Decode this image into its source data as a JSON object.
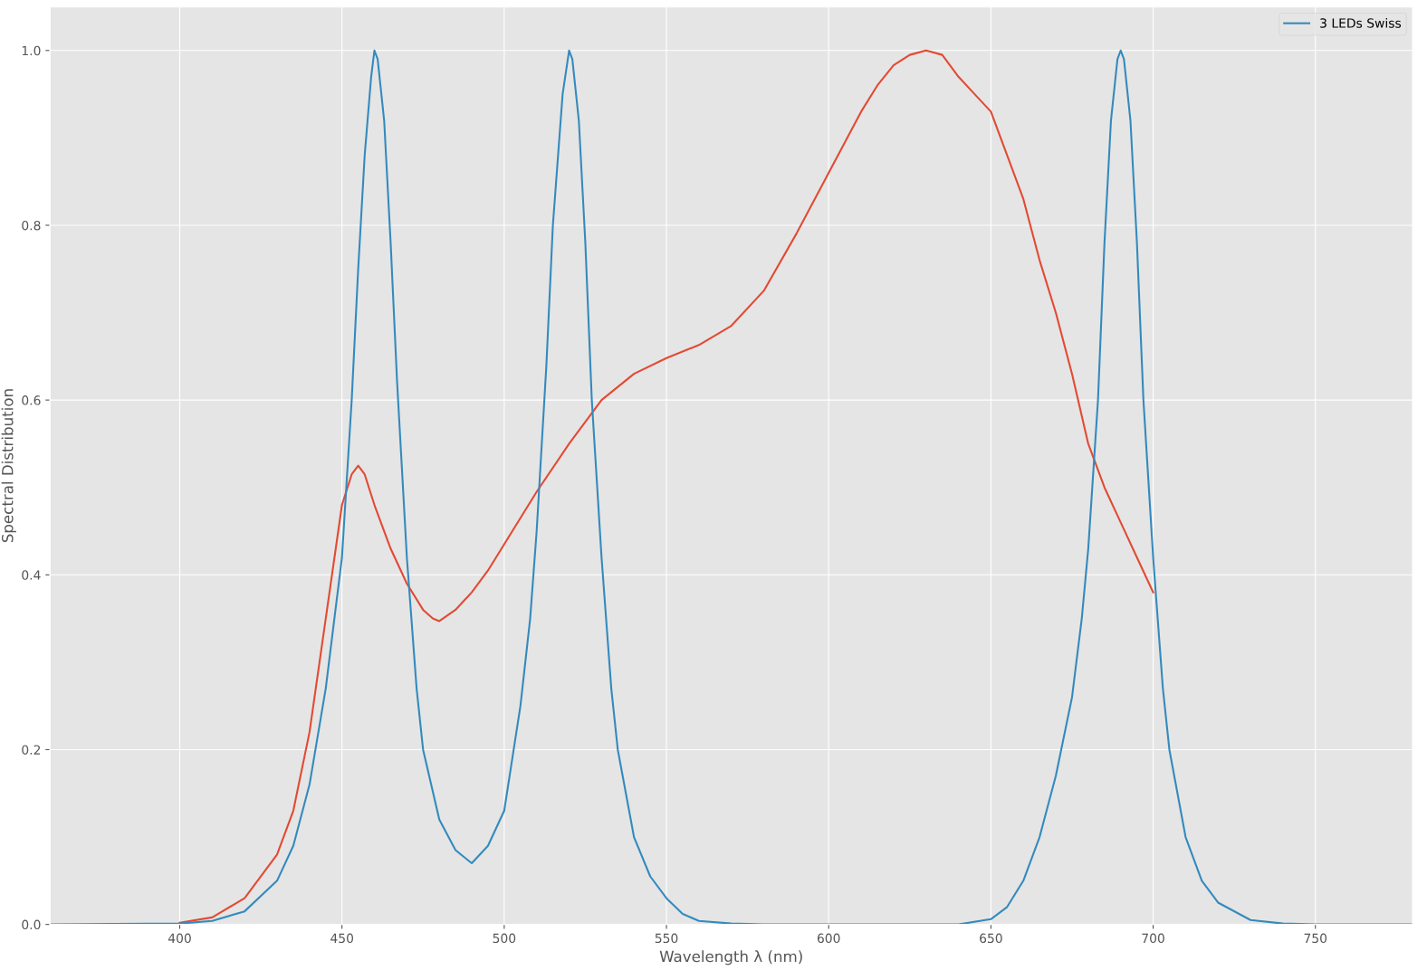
{
  "chart_data": {
    "type": "line",
    "xlabel": "Wavelength λ (nm)",
    "ylabel": "Spectral Distribution",
    "xlim": [
      360,
      780
    ],
    "ylim": [
      0,
      1.05
    ],
    "xticks": [
      400,
      450,
      500,
      550,
      600,
      650,
      700,
      750
    ],
    "yticks": [
      {
        "value": 0,
        "label": "0.0"
      },
      {
        "value": 0.2,
        "label": "0.2"
      },
      {
        "value": 0.4,
        "label": "0.4"
      },
      {
        "value": 0.6,
        "label": "0.6"
      },
      {
        "value": 0.8,
        "label": "0.8"
      },
      {
        "value": 1.0,
        "label": "1.0"
      }
    ],
    "grid": true,
    "legend": "top right",
    "marker": "none",
    "line_style": "solid",
    "series": [
      {
        "color": "#e24a33",
        "x": [
          400,
          410,
          420,
          430,
          435,
          440,
          445,
          450,
          453,
          455,
          457,
          460,
          465,
          470,
          475,
          478,
          480,
          485,
          490,
          495,
          500,
          510,
          520,
          530,
          540,
          550,
          560,
          570,
          580,
          590,
          600,
          610,
          615,
          620,
          625,
          630,
          635,
          640,
          645,
          650,
          655,
          660,
          665,
          670,
          675,
          680,
          685,
          690,
          695,
          700
        ],
        "values": [
          0.002,
          0.008,
          0.03,
          0.08,
          0.13,
          0.22,
          0.35,
          0.48,
          0.515,
          0.525,
          0.515,
          0.48,
          0.43,
          0.39,
          0.36,
          0.35,
          0.347,
          0.36,
          0.38,
          0.405,
          0.435,
          0.495,
          0.55,
          0.6,
          0.63,
          0.648,
          0.663,
          0.685,
          0.725,
          0.79,
          0.86,
          0.93,
          0.96,
          0.983,
          0.995,
          1.0,
          0.995,
          0.97,
          0.95,
          0.93,
          0.88,
          0.83,
          0.76,
          0.7,
          0.63,
          0.55,
          0.5,
          0.46,
          0.42,
          0.38
        ]
      },
      {
        "name": "3 LEDs Swiss",
        "color": "#348abd",
        "x": [
          360,
          400,
          410,
          420,
          430,
          435,
          440,
          445,
          450,
          453,
          455,
          457,
          459,
          460,
          461,
          463,
          465,
          467,
          470,
          473,
          475,
          480,
          485,
          490,
          495,
          500,
          505,
          508,
          510,
          513,
          515,
          518,
          520,
          521,
          523,
          525,
          527,
          530,
          533,
          535,
          540,
          545,
          550,
          555,
          560,
          570,
          580,
          640,
          650,
          655,
          660,
          665,
          670,
          675,
          678,
          680,
          683,
          685,
          687,
          689,
          690,
          691,
          693,
          695,
          697,
          700,
          703,
          705,
          710,
          715,
          720,
          730,
          740,
          750,
          780
        ],
        "values": [
          0,
          0.001,
          0.004,
          0.015,
          0.05,
          0.09,
          0.16,
          0.27,
          0.42,
          0.6,
          0.75,
          0.88,
          0.97,
          1.0,
          0.99,
          0.92,
          0.78,
          0.62,
          0.42,
          0.27,
          0.2,
          0.12,
          0.085,
          0.07,
          0.09,
          0.13,
          0.25,
          0.35,
          0.45,
          0.64,
          0.8,
          0.95,
          1.0,
          0.99,
          0.92,
          0.78,
          0.6,
          0.42,
          0.27,
          0.2,
          0.1,
          0.055,
          0.03,
          0.012,
          0.004,
          0.001,
          0,
          0,
          0.006,
          0.02,
          0.05,
          0.1,
          0.17,
          0.26,
          0.35,
          0.43,
          0.6,
          0.78,
          0.92,
          0.99,
          1.0,
          0.99,
          0.92,
          0.78,
          0.6,
          0.42,
          0.27,
          0.2,
          0.1,
          0.05,
          0.025,
          0.005,
          0.001,
          0,
          0
        ]
      }
    ]
  }
}
